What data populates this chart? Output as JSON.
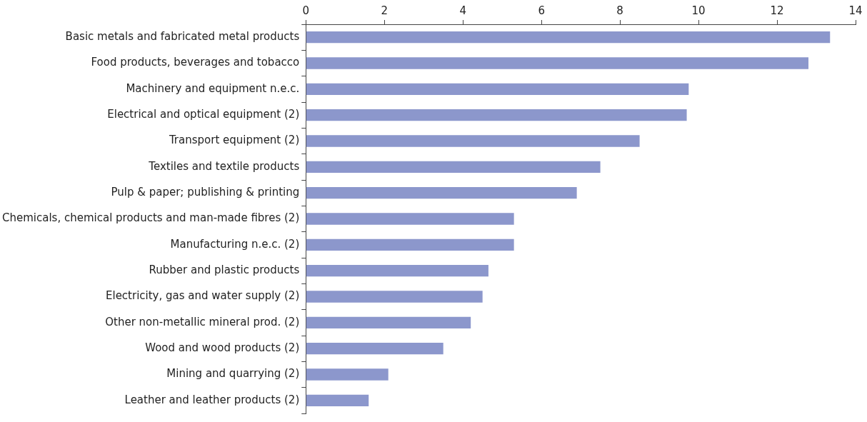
{
  "chart_data": {
    "type": "bar",
    "orientation": "horizontal",
    "categories": [
      "Basic metals and fabricated metal products",
      "Food products, beverages and tobacco",
      "Machinery and equipment n.e.c.",
      "Electrical and optical equipment (2)",
      "Transport equipment (2)",
      "Textiles and textile products",
      "Pulp & paper; publishing & printing",
      "Chemicals, chemical products and man-made fibres (2)",
      "Manufacturing n.e.c. (2)",
      "Rubber and plastic products",
      "Electricity, gas and water supply (2)",
      "Other non-metallic mineral prod. (2)",
      "Wood and wood products (2)",
      "Mining and quarrying (2)",
      "Leather and leather products (2)"
    ],
    "values": [
      13.35,
      12.8,
      9.75,
      9.7,
      8.5,
      7.5,
      6.9,
      5.3,
      5.3,
      4.65,
      4.5,
      4.2,
      3.5,
      2.1,
      1.6
    ],
    "color": "#8c97cc",
    "xlim": [
      0,
      14
    ],
    "xticks": [
      0,
      2,
      4,
      6,
      8,
      10,
      12,
      14
    ],
    "grid": false
  }
}
